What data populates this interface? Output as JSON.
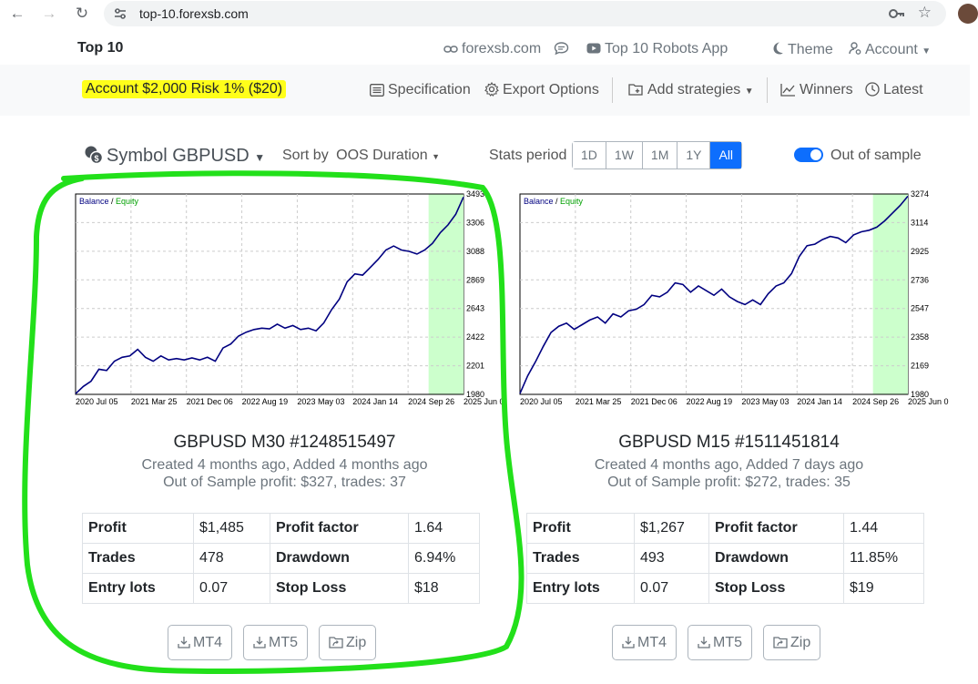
{
  "browser": {
    "url": "top-10.forexsb.com"
  },
  "navbar": {
    "brand": "Top 10",
    "site_link": "forexsb.com",
    "robots_app": "Top 10 Robots App",
    "theme": "Theme",
    "account": "Account"
  },
  "toolbar": {
    "account_info": "Account $2,000  Risk 1% ($20)",
    "specification": "Specification",
    "export_options": "Export Options",
    "add_strategies": "Add strategies",
    "winners": "Winners",
    "latest": "Latest"
  },
  "filters": {
    "symbol_label": "Symbol GBPUSD",
    "sort_by_label": "Sort by",
    "sort_by_value": "OOS Duration",
    "stats_period_label": "Stats period",
    "periods": [
      "1D",
      "1W",
      "1M",
      "1Y",
      "All"
    ],
    "active_period": "All",
    "out_of_sample_label": "Out of sample",
    "out_of_sample_on": true
  },
  "colors": {
    "accent": "#0d6efd",
    "balance_line": "#000080",
    "oos_zone": "#ccffcc",
    "highlight_marker": "#ffff1a",
    "annotation_circle": "#22e01a"
  },
  "strategies": [
    {
      "title": "GBPUSD M30 #1248515497",
      "created": "Created 4 months ago, Added 4 months ago",
      "oos": "Out of Sample profit: $327, trades: 37",
      "stats": [
        [
          "Profit",
          "$1,485",
          "Profit factor",
          "1.64"
        ],
        [
          "Trades",
          "478",
          "Drawdown",
          "6.94%"
        ],
        [
          "Entry lots",
          "0.07",
          "Stop Loss",
          "$18"
        ]
      ],
      "buttons": [
        "MT4",
        "MT5",
        "Zip"
      ]
    },
    {
      "title": "GBPUSD M15 #1511451814",
      "created": "Created 4 months ago, Added 7 days ago",
      "oos": "Out of Sample profit: $272, trades: 35",
      "stats": [
        [
          "Profit",
          "$1,267",
          "Profit factor",
          "1.44"
        ],
        [
          "Trades",
          "493",
          "Drawdown",
          "11.85%"
        ],
        [
          "Entry lots",
          "0.07",
          "Stop Loss",
          "$19"
        ]
      ],
      "buttons": [
        "MT4",
        "MT5",
        "Zip"
      ]
    }
  ],
  "chart_data": [
    {
      "type": "line",
      "legend": [
        "Balance",
        "Equity"
      ],
      "x_tick_labels": [
        "2020 Jul 05",
        "2021 Mar 25",
        "2021 Dec 06",
        "2022 Aug 19",
        "2023 May 03",
        "2024 Jan 14",
        "2024 Sep 26",
        "2025 Jun 0"
      ],
      "y_tick_labels": [
        "3493",
        "3306",
        "3088",
        "2869",
        "2643",
        "2422",
        "2201",
        "1980"
      ],
      "ylim": [
        1980,
        3493
      ],
      "oos_start_fraction": 0.91,
      "series": [
        {
          "name": "Balance",
          "x": [
            0,
            0.02,
            0.04,
            0.06,
            0.08,
            0.1,
            0.12,
            0.14,
            0.16,
            0.18,
            0.2,
            0.22,
            0.24,
            0.26,
            0.28,
            0.3,
            0.32,
            0.34,
            0.36,
            0.38,
            0.4,
            0.42,
            0.44,
            0.46,
            0.48,
            0.5,
            0.52,
            0.54,
            0.56,
            0.58,
            0.6,
            0.62,
            0.64,
            0.66,
            0.68,
            0.7,
            0.72,
            0.74,
            0.76,
            0.78,
            0.8,
            0.82,
            0.84,
            0.86,
            0.88,
            0.9,
            0.92,
            0.94,
            0.96,
            0.98,
            1.0
          ],
          "y": [
            1985,
            2040,
            2080,
            2170,
            2160,
            2230,
            2260,
            2270,
            2320,
            2260,
            2230,
            2270,
            2240,
            2250,
            2240,
            2255,
            2240,
            2260,
            2230,
            2330,
            2360,
            2420,
            2450,
            2470,
            2480,
            2475,
            2510,
            2480,
            2500,
            2470,
            2480,
            2460,
            2520,
            2620,
            2700,
            2830,
            2890,
            2880,
            2940,
            3000,
            3070,
            3100,
            3070,
            3060,
            3040,
            3070,
            3120,
            3200,
            3260,
            3340,
            3470
          ]
        }
      ]
    },
    {
      "type": "line",
      "legend": [
        "Balance",
        "Equity"
      ],
      "x_tick_labels": [
        "2020 Jul 05",
        "2021 Mar 25",
        "2021 Dec 06",
        "2022 Aug 19",
        "2023 May 03",
        "2024 Jan 14",
        "2024 Sep 26",
        "2025 Jun 0"
      ],
      "y_tick_labels": [
        "3274",
        "3114",
        "2925",
        "2736",
        "2547",
        "2358",
        "2169",
        "1980"
      ],
      "ylim": [
        1980,
        3274
      ],
      "oos_start_fraction": 0.91,
      "series": [
        {
          "name": "Balance",
          "x": [
            0,
            0.02,
            0.04,
            0.06,
            0.08,
            0.1,
            0.12,
            0.14,
            0.16,
            0.18,
            0.2,
            0.22,
            0.24,
            0.26,
            0.28,
            0.3,
            0.32,
            0.34,
            0.36,
            0.38,
            0.4,
            0.42,
            0.44,
            0.46,
            0.48,
            0.5,
            0.52,
            0.54,
            0.56,
            0.58,
            0.6,
            0.62,
            0.64,
            0.66,
            0.68,
            0.7,
            0.72,
            0.74,
            0.76,
            0.78,
            0.8,
            0.82,
            0.84,
            0.86,
            0.88,
            0.9,
            0.92,
            0.94,
            0.96,
            0.98,
            1.0
          ],
          "y": [
            1985,
            2100,
            2190,
            2290,
            2380,
            2420,
            2440,
            2400,
            2430,
            2460,
            2480,
            2440,
            2500,
            2480,
            2520,
            2530,
            2560,
            2620,
            2610,
            2640,
            2700,
            2690,
            2640,
            2680,
            2650,
            2620,
            2660,
            2610,
            2580,
            2560,
            2590,
            2560,
            2630,
            2680,
            2700,
            2760,
            2870,
            2940,
            2950,
            2980,
            3000,
            2990,
            2960,
            3010,
            3030,
            3040,
            3060,
            3100,
            3150,
            3200,
            3260
          ]
        }
      ]
    }
  ]
}
